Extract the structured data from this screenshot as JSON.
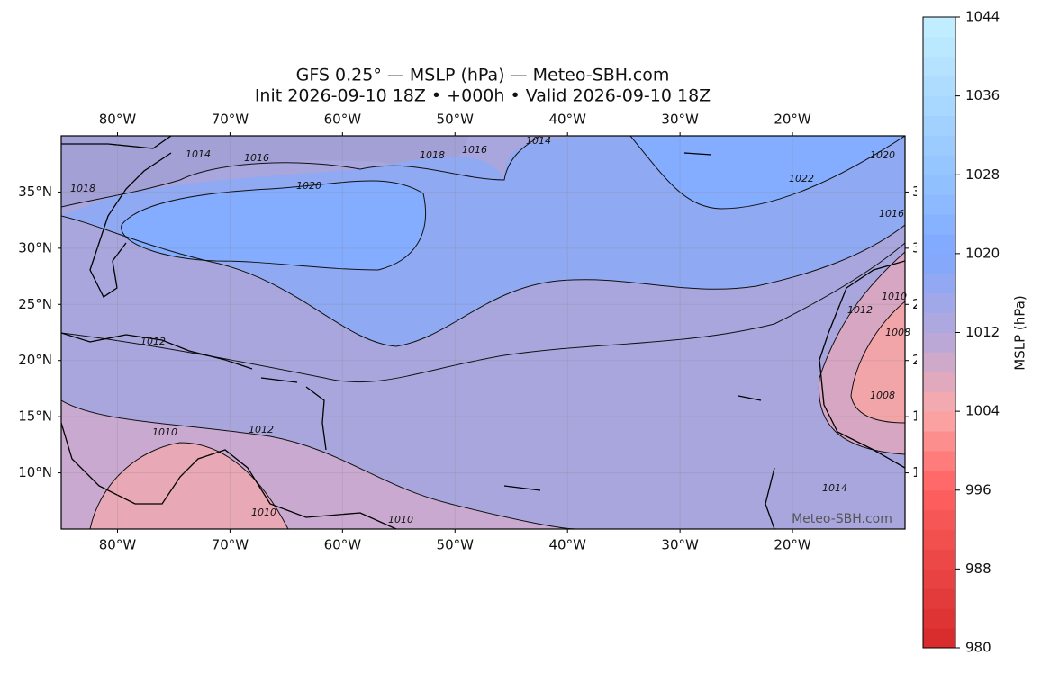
{
  "map": {
    "title": [
      "GFS 0.25° — MSLP (hPa) — Meteo-SBH.com",
      "Init 2026-09-10 18Z • +000h • Valid 2026-09-10 18Z"
    ],
    "xlim": [
      -85,
      -10
    ],
    "ylim": [
      5,
      40
    ],
    "lon_ticks": [
      {
        "value": -80,
        "label": "80°W"
      },
      {
        "value": -70,
        "label": "70°W"
      },
      {
        "value": -60,
        "label": "60°W"
      },
      {
        "value": -50,
        "label": "50°W"
      },
      {
        "value": -40,
        "label": "40°W"
      },
      {
        "value": -30,
        "label": "30°W"
      },
      {
        "value": -20,
        "label": "20°W"
      }
    ],
    "lat_ticks": [
      {
        "value": 35,
        "label": "35°N"
      },
      {
        "value": 30,
        "label": "30°N"
      },
      {
        "value": 25,
        "label": "25°N"
      },
      {
        "value": 20,
        "label": "20°N"
      },
      {
        "value": 15,
        "label": "15°N"
      },
      {
        "value": 10,
        "label": "10°N"
      }
    ],
    "contour_labels": [
      1014,
      1016,
      1018,
      1020,
      1018,
      1016,
      1014,
      1022,
      1020,
      1016,
      1012,
      1010,
      1008,
      1008,
      1012,
      1010,
      1012,
      1014,
      1010,
      1010
    ],
    "watermark": "Meteo-SBH.com"
  },
  "colorbar": {
    "label": "MSLP (hPa)",
    "lim": [
      980,
      1044
    ],
    "ticks": [
      980,
      988,
      996,
      1004,
      1012,
      1020,
      1028,
      1036,
      1044
    ]
  }
}
